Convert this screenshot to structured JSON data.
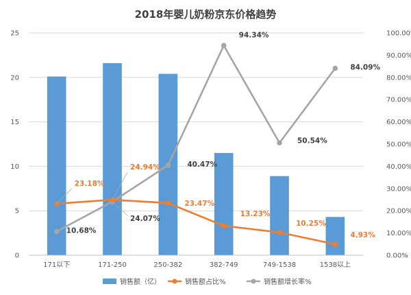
{
  "chart_data": {
    "type": "bar",
    "title": "2018年婴儿奶粉京东价格趋势",
    "categories": [
      "171以下",
      "171-250",
      "250-382",
      "382-749",
      "749-1538",
      "1538以上"
    ],
    "ylim": [
      0,
      25
    ],
    "yticks": [
      0,
      5,
      10,
      15,
      20,
      25
    ],
    "y2lim": [
      0,
      100
    ],
    "y2ticks": [
      "0.00%",
      "10.00%",
      "20.00%",
      "30.00%",
      "40.00%",
      "50.00%",
      "60.00%",
      "70.00%",
      "80.00%",
      "90.00%",
      "100.00%"
    ],
    "grid": true,
    "legend_position": "bottom",
    "colors": {
      "bar": "#5b9bd5",
      "share": "#ed7d31",
      "growth": "#a5a5a5"
    },
    "series": [
      {
        "name": "销售额（亿）",
        "type": "bar",
        "axis": "left",
        "values": [
          20.1,
          21.6,
          20.4,
          11.5,
          8.9,
          4.3
        ]
      },
      {
        "name": "销售额占比%",
        "type": "line",
        "axis": "right",
        "values": [
          23.18,
          24.94,
          23.47,
          13.23,
          10.25,
          4.93
        ],
        "labels": [
          "23.18%",
          "24.94%",
          "23.47%",
          "13.23%",
          "10.25%",
          "4.93%"
        ]
      },
      {
        "name": "销售额增长率%",
        "type": "line",
        "axis": "right",
        "values": [
          10.68,
          24.07,
          40.47,
          94.34,
          50.54,
          84.09
        ],
        "labels": [
          "10.68%",
          "24.07%",
          "40.47%",
          "94.34%",
          "50.54%",
          "84.09%"
        ]
      }
    ]
  }
}
